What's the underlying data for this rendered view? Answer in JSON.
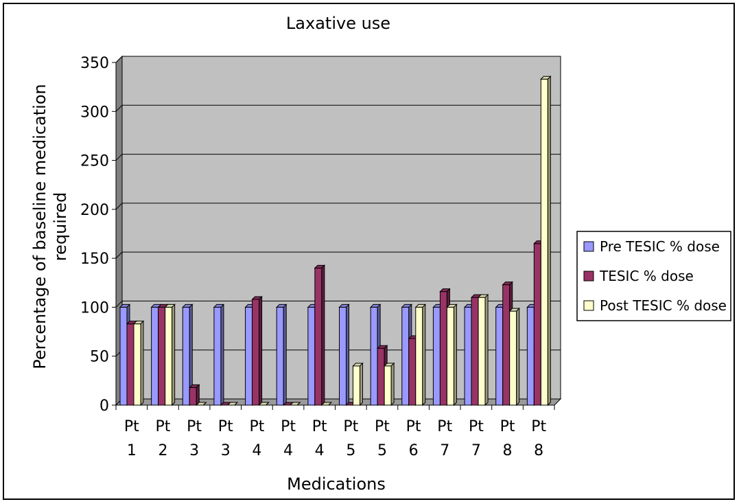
{
  "chart_data": {
    "type": "bar",
    "title": "Laxative use",
    "xlabel": "Medications",
    "ylabel": "Percentage of baseline medication required",
    "ylim": [
      0,
      350
    ],
    "yticks": [
      0,
      50,
      100,
      150,
      200,
      250,
      300,
      350
    ],
    "grid": true,
    "legend_position": "right",
    "categories": [
      [
        "Pt",
        "1"
      ],
      [
        "Pt",
        "2"
      ],
      [
        "Pt",
        "3"
      ],
      [
        "Pt",
        "3"
      ],
      [
        "Pt",
        "4"
      ],
      [
        "Pt",
        "4"
      ],
      [
        "Pt",
        "4"
      ],
      [
        "Pt",
        "5"
      ],
      [
        "Pt",
        "5"
      ],
      [
        "Pt",
        "6"
      ],
      [
        "Pt",
        "7"
      ],
      [
        "Pt",
        "7"
      ],
      [
        "Pt",
        "8"
      ],
      [
        "Pt",
        "8"
      ]
    ],
    "series": [
      {
        "name": "Pre TESIC % dose",
        "color": "#9999ff",
        "values": [
          100,
          100,
          100,
          100,
          100,
          100,
          100,
          100,
          100,
          100,
          100,
          100,
          100,
          100
        ]
      },
      {
        "name": "TESIC % dose",
        "color": "#993366",
        "values": [
          83,
          100,
          18,
          0,
          108,
          0,
          140,
          0,
          58,
          68,
          116,
          110,
          123,
          165
        ]
      },
      {
        "name": "Post TESIC % dose",
        "color": "#ffffcc",
        "values": [
          83,
          100,
          0,
          0,
          0,
          0,
          0,
          40,
          40,
          100,
          100,
          110,
          96,
          333
        ]
      }
    ]
  }
}
